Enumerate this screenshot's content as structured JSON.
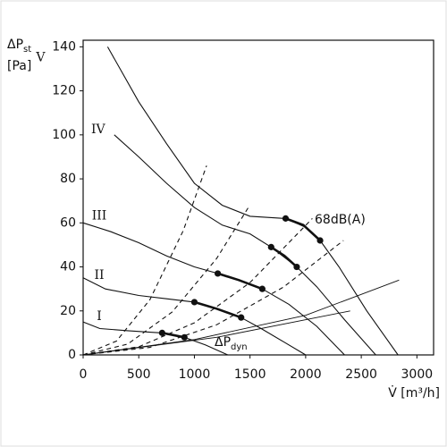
{
  "chart_data": {
    "type": "line",
    "ylabel": {
      "main": "ΔP",
      "sub": "st",
      "unit": "[Pa]"
    },
    "xlabel": "V̇ [m³/h]",
    "xlim": [
      0,
      3150
    ],
    "ylim": [
      0,
      143
    ],
    "xticks": [
      0,
      500,
      1000,
      1500,
      2000,
      2500,
      3000
    ],
    "yticks": [
      0,
      20,
      40,
      60,
      80,
      100,
      120,
      140
    ],
    "grid": false,
    "annotations": [
      {
        "text": "68dB(A)"
      },
      {
        "main": "ΔP",
        "sub": "dyn"
      }
    ],
    "series": [
      {
        "name": "V",
        "style": "solid",
        "color": "#111",
        "x": [
          220,
          500,
          750,
          1000,
          1250,
          1500,
          1820,
          2000,
          2130,
          2300,
          2550,
          2830
        ],
        "values": [
          140,
          115,
          96,
          78,
          68,
          63,
          62,
          58,
          52,
          40,
          20,
          0
        ]
      },
      {
        "name": "IV",
        "style": "solid",
        "color": "#111",
        "x": [
          280,
          500,
          750,
          1000,
          1250,
          1500,
          1690,
          1920,
          2100,
          2350,
          2630
        ],
        "values": [
          100,
          90,
          78,
          67,
          59,
          55,
          49,
          40,
          31,
          16,
          0
        ]
      },
      {
        "name": "III",
        "style": "solid",
        "color": "#111",
        "x": [
          0,
          250,
          500,
          750,
          1000,
          1210,
          1400,
          1610,
          1850,
          2100,
          2350
        ],
        "values": [
          60,
          56,
          51,
          45,
          40,
          37,
          34,
          30,
          23,
          13,
          0
        ]
      },
      {
        "name": "II",
        "style": "solid",
        "color": "#111",
        "x": [
          0,
          200,
          500,
          750,
          1000,
          1200,
          1420,
          1600,
          1800,
          2000
        ],
        "values": [
          35,
          30,
          27,
          25.5,
          24,
          21,
          17,
          12,
          6,
          0
        ]
      },
      {
        "name": "I",
        "style": "solid",
        "color": "#111",
        "x": [
          0,
          150,
          400,
          710,
          910,
          1100,
          1300
        ],
        "values": [
          15,
          12,
          11,
          10,
          8,
          4.5,
          0
        ]
      },
      {
        "style": "dashed",
        "color": "#111",
        "x": [
          0,
          300,
          600,
          900,
          1110
        ],
        "values": [
          0,
          6.3,
          25.1,
          56.5,
          86
        ]
      },
      {
        "style": "dashed",
        "color": "#111",
        "x": [
          0,
          400,
          800,
          1200,
          1485
        ],
        "values": [
          0,
          4.9,
          19.5,
          43.8,
          67
        ]
      },
      {
        "style": "dashed",
        "color": "#111",
        "x": [
          0,
          500,
          1000,
          1500,
          2060
        ],
        "values": [
          0,
          3.7,
          14.6,
          32.9,
          62
        ]
      },
      {
        "style": "dashed",
        "color": "#111",
        "x": [
          0,
          600,
          1200,
          1800,
          2340
        ],
        "values": [
          0,
          3.4,
          13.7,
          30.8,
          52
        ]
      },
      {
        "style": "thin",
        "color": "#111",
        "x": [
          0,
          1000,
          2000,
          2840
        ],
        "values": [
          0,
          7,
          18,
          34
        ]
      },
      {
        "style": "thin",
        "color": "#111",
        "x": [
          0,
          1200,
          2400
        ],
        "values": [
          0,
          8,
          20
        ]
      },
      {
        "style": "thick",
        "color": "#111",
        "x": [
          1820,
          1980,
          2130
        ],
        "values": [
          62,
          59,
          52
        ]
      },
      {
        "style": "thick",
        "color": "#111",
        "x": [
          1690,
          1810,
          1920
        ],
        "values": [
          49,
          45,
          40
        ]
      },
      {
        "style": "thick",
        "color": "#111",
        "x": [
          1210,
          1400,
          1610
        ],
        "values": [
          37,
          34,
          30
        ]
      },
      {
        "style": "thick",
        "color": "#111",
        "x": [
          1000,
          1200,
          1420
        ],
        "values": [
          24,
          21,
          17
        ]
      },
      {
        "style": "thick",
        "color": "#111",
        "x": [
          710,
          810,
          910
        ],
        "values": [
          10,
          9,
          8
        ]
      }
    ]
  }
}
